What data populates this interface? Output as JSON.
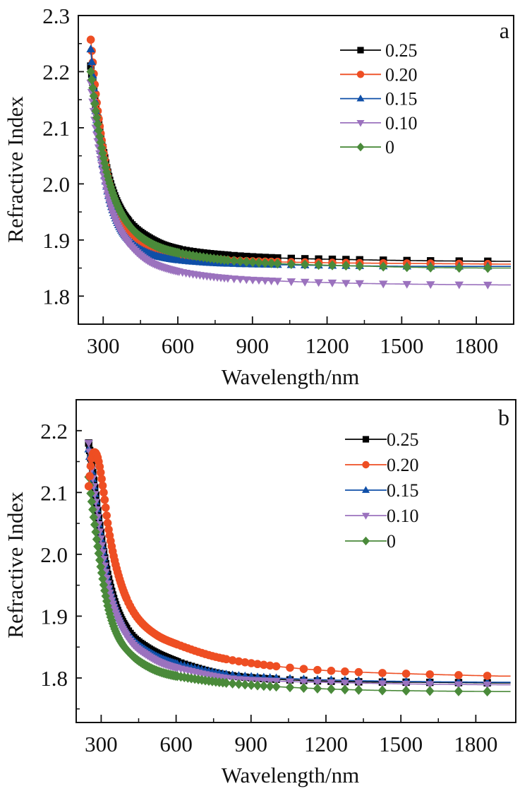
{
  "chart_data": [
    {
      "type": "line",
      "panel_label": "a",
      "xlabel": "Wavelength/nm",
      "ylabel": "Refractive Index",
      "xlim": [
        200,
        1950
      ],
      "ylim": [
        1.75,
        2.3
      ],
      "xticks": [
        300,
        600,
        900,
        1200,
        1500,
        1800
      ],
      "xtick_labels": [
        "300",
        "600",
        "900",
        "1200",
        "1500",
        "1800"
      ],
      "xminor": [
        450,
        750,
        1050,
        1350,
        1650
      ],
      "yticks": [
        1.8,
        1.9,
        2.0,
        2.1,
        2.2,
        2.3
      ],
      "ytick_labels": [
        "1.8",
        "1.9",
        "2.0",
        "2.1",
        "2.2",
        "2.3"
      ],
      "yminor": [
        1.85,
        1.95,
        2.05,
        2.15,
        2.25
      ],
      "legend_position": "top-right",
      "grid": false,
      "series": [
        {
          "name": "0.25",
          "color": "#000000",
          "marker": "square",
          "points": [
            [
              250,
              2.21
            ],
            [
              270,
              2.14
            ],
            [
              300,
              2.06
            ],
            [
              330,
              2.0
            ],
            [
              370,
              1.955
            ],
            [
              420,
              1.925
            ],
            [
              480,
              1.905
            ],
            [
              550,
              1.89
            ],
            [
              650,
              1.88
            ],
            [
              800,
              1.873
            ],
            [
              1000,
              1.868
            ],
            [
              1300,
              1.865
            ],
            [
              1600,
              1.863
            ],
            [
              1900,
              1.862
            ]
          ]
        },
        {
          "name": "0.20",
          "color": "#EE4E23",
          "marker": "circle",
          "points": [
            [
              250,
              2.257
            ],
            [
              270,
              2.16
            ],
            [
              300,
              2.06
            ],
            [
              330,
              1.99
            ],
            [
              370,
              1.94
            ],
            [
              420,
              1.91
            ],
            [
              480,
              1.89
            ],
            [
              550,
              1.878
            ],
            [
              650,
              1.87
            ],
            [
              800,
              1.864
            ],
            [
              1000,
              1.861
            ],
            [
              1300,
              1.859
            ],
            [
              1600,
              1.858
            ],
            [
              1900,
              1.857
            ]
          ]
        },
        {
          "name": "0.15",
          "color": "#0F4FA8",
          "marker": "triangle-up",
          "points": [
            [
              250,
              2.24
            ],
            [
              270,
              2.13
            ],
            [
              300,
              2.03
            ],
            [
              330,
              1.965
            ],
            [
              370,
              1.92
            ],
            [
              420,
              1.893
            ],
            [
              480,
              1.877
            ],
            [
              550,
              1.868
            ],
            [
              650,
              1.862
            ],
            [
              800,
              1.858
            ],
            [
              1000,
              1.856
            ],
            [
              1300,
              1.854
            ],
            [
              1600,
              1.853
            ],
            [
              1900,
              1.853
            ]
          ]
        },
        {
          "name": "0.10",
          "color": "#9B72BE",
          "marker": "triangle-down",
          "points": [
            [
              250,
              2.18
            ],
            [
              270,
              2.1
            ],
            [
              300,
              2.02
            ],
            [
              330,
              1.96
            ],
            [
              370,
              1.915
            ],
            [
              420,
              1.885
            ],
            [
              480,
              1.863
            ],
            [
              550,
              1.85
            ],
            [
              650,
              1.84
            ],
            [
              800,
              1.832
            ],
            [
              1000,
              1.827
            ],
            [
              1300,
              1.823
            ],
            [
              1600,
              1.821
            ],
            [
              1900,
              1.82
            ]
          ]
        },
        {
          "name": "0",
          "color": "#4A8A3A",
          "marker": "diamond",
          "points": [
            [
              250,
              2.2
            ],
            [
              270,
              2.13
            ],
            [
              300,
              2.05
            ],
            [
              330,
              1.995
            ],
            [
              370,
              1.95
            ],
            [
              420,
              1.918
            ],
            [
              480,
              1.897
            ],
            [
              550,
              1.883
            ],
            [
              650,
              1.873
            ],
            [
              800,
              1.864
            ],
            [
              1000,
              1.858
            ],
            [
              1300,
              1.854
            ],
            [
              1600,
              1.851
            ],
            [
              1900,
              1.85
            ]
          ]
        }
      ]
    },
    {
      "type": "line",
      "panel_label": "b",
      "xlabel": "Wavelength/nm",
      "ylabel": "Refractive Index",
      "xlim": [
        200,
        1960
      ],
      "ylim": [
        1.728,
        2.25
      ],
      "xticks": [
        300,
        600,
        900,
        1200,
        1500,
        1800
      ],
      "xtick_labels": [
        "300",
        "600",
        "900",
        "1200",
        "1500",
        "1800"
      ],
      "xminor": [
        450,
        750,
        1050,
        1350,
        1650
      ],
      "yticks": [
        1.8,
        1.9,
        2.0,
        2.1,
        2.2
      ],
      "ytick_labels": [
        "1.8",
        "1.9",
        "2.0",
        "2.1",
        "2.2"
      ],
      "yminor": [
        1.75,
        1.85,
        1.95,
        2.05,
        2.15
      ],
      "legend_position": "top-right",
      "grid": false,
      "series": [
        {
          "name": "0.25",
          "color": "#000000",
          "marker": "square",
          "points": [
            [
              250,
              2.18
            ],
            [
              270,
              2.12
            ],
            [
              300,
              2.03
            ],
            [
              330,
              1.96
            ],
            [
              370,
              1.905
            ],
            [
              420,
              1.87
            ],
            [
              480,
              1.85
            ],
            [
              550,
              1.835
            ],
            [
              650,
              1.82
            ],
            [
              800,
              1.805
            ],
            [
              1000,
              1.798
            ],
            [
              1300,
              1.794
            ],
            [
              1600,
              1.793
            ],
            [
              1900,
              1.792
            ]
          ]
        },
        {
          "name": "0.20",
          "color": "#EE4E23",
          "marker": "circle",
          "points": [
            [
              250,
              2.11
            ],
            [
              262,
              2.155
            ],
            [
              275,
              2.165
            ],
            [
              290,
              2.15
            ],
            [
              310,
              2.1
            ],
            [
              330,
              2.04
            ],
            [
              360,
              1.98
            ],
            [
              400,
              1.93
            ],
            [
              450,
              1.895
            ],
            [
              520,
              1.87
            ],
            [
              600,
              1.855
            ],
            [
              750,
              1.835
            ],
            [
              900,
              1.824
            ],
            [
              1100,
              1.815
            ],
            [
              1300,
              1.81
            ],
            [
              1600,
              1.806
            ],
            [
              1900,
              1.803
            ]
          ]
        },
        {
          "name": "0.15",
          "color": "#0F4FA8",
          "marker": "triangle-up",
          "points": [
            [
              250,
              2.17
            ],
            [
              270,
              2.11
            ],
            [
              300,
              2.02
            ],
            [
              330,
              1.95
            ],
            [
              370,
              1.9
            ],
            [
              420,
              1.865
            ],
            [
              480,
              1.845
            ],
            [
              550,
              1.83
            ],
            [
              650,
              1.818
            ],
            [
              800,
              1.806
            ],
            [
              1000,
              1.8
            ],
            [
              1300,
              1.796
            ],
            [
              1600,
              1.794
            ],
            [
              1900,
              1.793
            ]
          ]
        },
        {
          "name": "0.10",
          "color": "#9B72BE",
          "marker": "triangle-down",
          "points": [
            [
              250,
              2.18
            ],
            [
              270,
              2.11
            ],
            [
              300,
              2.02
            ],
            [
              330,
              1.945
            ],
            [
              370,
              1.893
            ],
            [
              420,
              1.858
            ],
            [
              480,
              1.838
            ],
            [
              550,
              1.823
            ],
            [
              650,
              1.812
            ],
            [
              800,
              1.8
            ],
            [
              1000,
              1.795
            ],
            [
              1300,
              1.792
            ],
            [
              1600,
              1.79
            ],
            [
              1900,
              1.789
            ]
          ]
        },
        {
          "name": "0",
          "color": "#4A8A3A",
          "marker": "diamond",
          "points": [
            [
              250,
              2.125
            ],
            [
              270,
              2.06
            ],
            [
              300,
              1.975
            ],
            [
              330,
              1.91
            ],
            [
              370,
              1.865
            ],
            [
              420,
              1.838
            ],
            [
              480,
              1.82
            ],
            [
              550,
              1.808
            ],
            [
              650,
              1.8
            ],
            [
              800,
              1.792
            ],
            [
              1000,
              1.786
            ],
            [
              1300,
              1.781
            ],
            [
              1600,
              1.779
            ],
            [
              1900,
              1.778
            ]
          ]
        }
      ]
    }
  ]
}
